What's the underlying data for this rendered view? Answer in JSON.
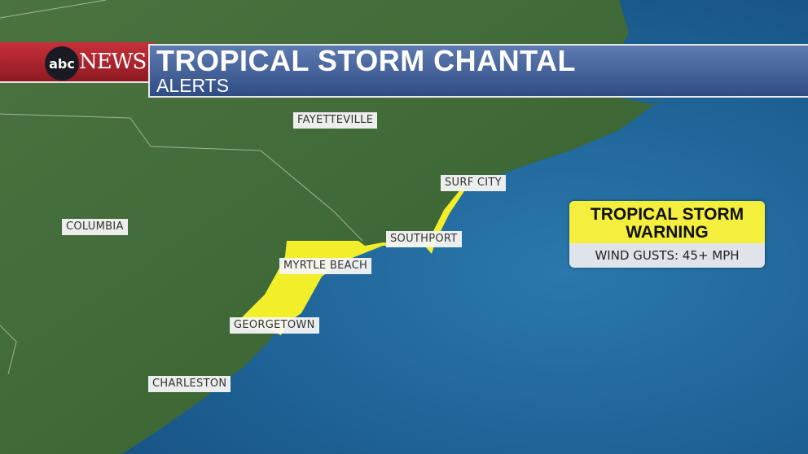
{
  "header": {
    "network_logo": "abc NEWS",
    "logo_abc": "abc",
    "logo_news": "NEWS",
    "title": "TROPICAL STORM CHANTAL",
    "subtitle": "ALERTS"
  },
  "cities": [
    "FAYETTEVILLE",
    "SURF CITY",
    "COLUMBIA",
    "SOUTHPORT",
    "MYRTLE BEACH",
    "GEORGETOWN",
    "CHARLESTON"
  ],
  "alert_box": {
    "title_line1": "TROPICAL STORM",
    "title_line2": "WARNING",
    "detail": "WIND GUSTS: 45+ MPH"
  },
  "colors": {
    "land": "#3f6a35",
    "ocean": "#1f6598",
    "warning_zone": "#f2ee2a",
    "banner_red": "#b5252e",
    "banner_blue": "#3e5a93"
  }
}
